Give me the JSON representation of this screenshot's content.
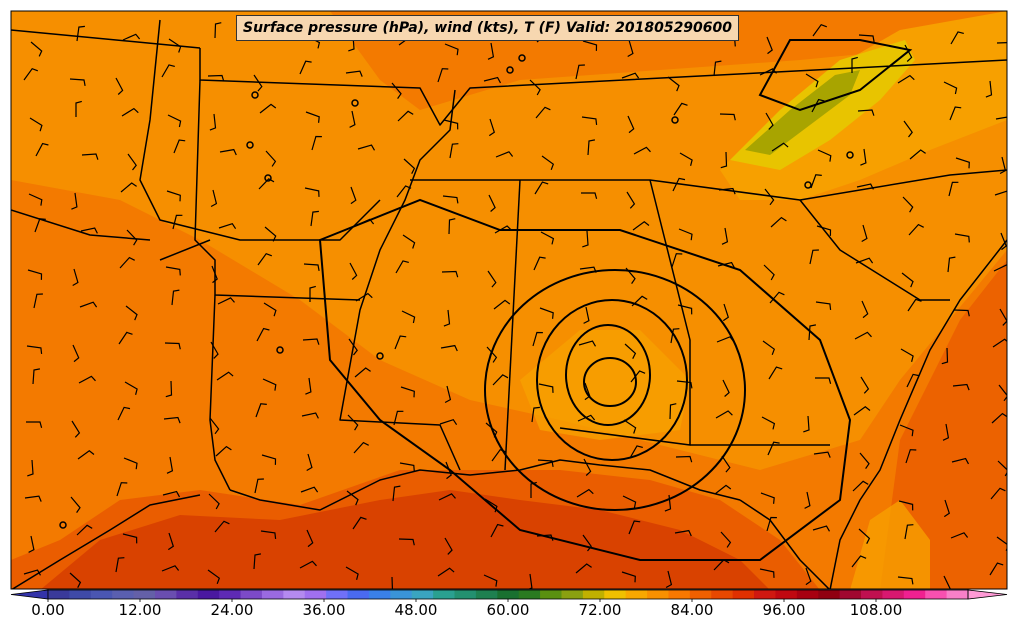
{
  "title": "Surface pressure (hPa), wind (kts), T (F) Valid: 201805290600",
  "colorbar": {
    "tick_labels": [
      "0.00",
      "12.00",
      "24.00",
      "36.00",
      "48.00",
      "60.00",
      "72.00",
      "84.00",
      "96.00",
      "108.00"
    ],
    "range": [
      0,
      120
    ],
    "colors": [
      "#3a3a9a",
      "#3f4aa8",
      "#4a56b2",
      "#5a5fb0",
      "#6460a8",
      "#6a4eb0",
      "#5a2fa8",
      "#4a18a0",
      "#5e2ab4",
      "#7c4ac8",
      "#9a6ae0",
      "#b48af0",
      "#a070f0",
      "#7070f8",
      "#4a6af0",
      "#3a80e8",
      "#3a94d8",
      "#3aa4c0",
      "#2aa090",
      "#239070",
      "#1e8050",
      "#197030",
      "#2a7a20",
      "#5a9010",
      "#8aa010",
      "#c0b000",
      "#f0c000",
      "#f8a800",
      "#f89000",
      "#f87800",
      "#f06000",
      "#e84800",
      "#e03000",
      "#d01810",
      "#c00810",
      "#a80010",
      "#900010",
      "#a00830",
      "#c01050",
      "#d81870",
      "#f02090",
      "#f850b0",
      "#f880c8"
    ],
    "over_color": "#ff9ad6",
    "under_color": "#3333aa"
  },
  "map_colors": {
    "temp_mid": "#f37a00",
    "temp_warm": "#ea5d00",
    "temp_hot": "#d94200",
    "temp_cool": "#f7a000",
    "temp_cooler": "#e8c400",
    "temp_cold": "#a8a400",
    "lines": "#000000"
  }
}
